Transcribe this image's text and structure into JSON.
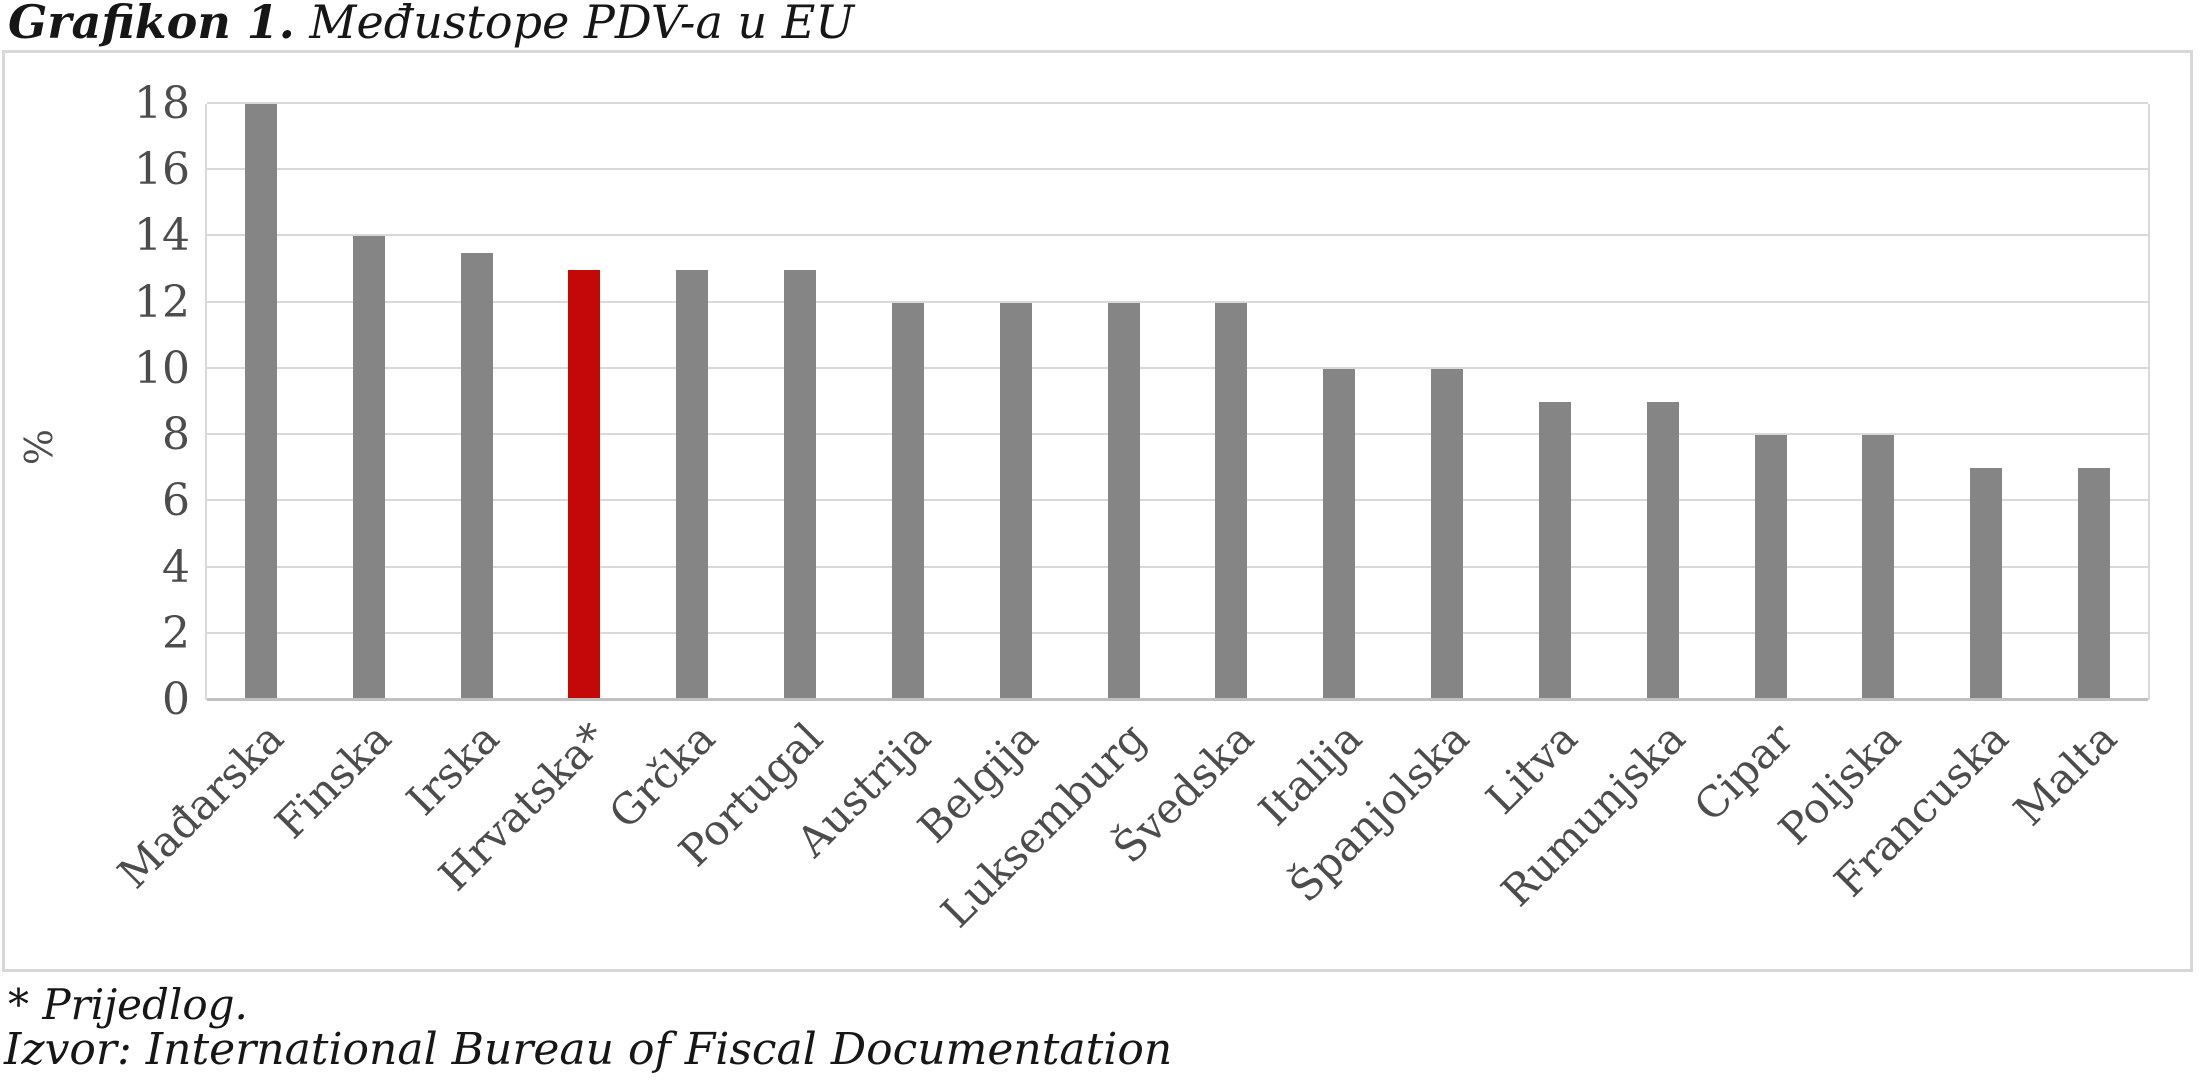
{
  "title": {
    "bold": "Grafikon 1.",
    "rest": " Međustope PDV-a u EU"
  },
  "footnotes": {
    "asterisk_note": "* Prijedlog.",
    "source": "Izvor: International Bureau of Fiscal Documentation"
  },
  "chart_data": {
    "type": "bar",
    "title": "Grafikon 1. Međustope PDV-a u EU",
    "xlabel": "",
    "ylabel": "%",
    "ylim": [
      0,
      18
    ],
    "ytick_step": 2,
    "yticks": [
      0,
      2,
      4,
      6,
      8,
      10,
      12,
      14,
      16,
      18
    ],
    "grid": true,
    "legend": "none",
    "categories": [
      "Mađarska",
      "Finska",
      "Irska",
      "Hrvatska*",
      "Grčka",
      "Portugal",
      "Austrija",
      "Belgija",
      "Luksemburg",
      "Švedska",
      "Italija",
      "Španjolska",
      "Litva",
      "Rumunjska",
      "Cipar",
      "Poljska",
      "Francuska",
      "Malta"
    ],
    "values": [
      18,
      14,
      13.5,
      13,
      13,
      13,
      12,
      12,
      12,
      12,
      10,
      10,
      9,
      9,
      8,
      8,
      7,
      7
    ],
    "highlight_index": 3,
    "highlight_category": "Hrvatska*",
    "bar_color": "#858585",
    "highlight_color": "#c40707",
    "gridline_color": "#d9d9d9"
  }
}
